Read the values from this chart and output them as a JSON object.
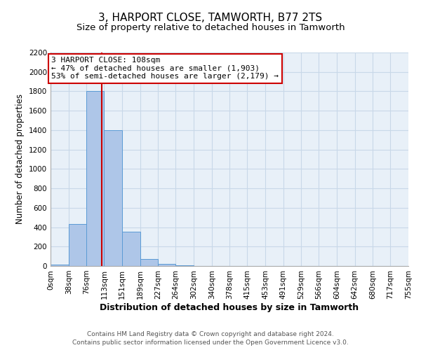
{
  "title": "3, HARPORT CLOSE, TAMWORTH, B77 2TS",
  "subtitle": "Size of property relative to detached houses in Tamworth",
  "xlabel": "Distribution of detached houses by size in Tamworth",
  "ylabel": "Number of detached properties",
  "bin_edges": [
    0,
    38,
    76,
    113,
    151,
    189,
    227,
    264,
    302,
    340,
    378,
    415,
    453,
    491,
    529,
    566,
    604,
    642,
    680,
    717,
    755
  ],
  "bin_counts": [
    15,
    430,
    1800,
    1400,
    350,
    75,
    25,
    5,
    0,
    0,
    0,
    0,
    0,
    0,
    0,
    0,
    0,
    0,
    0,
    0
  ],
  "bar_color": "#aec6e8",
  "bar_edge_color": "#5b9bd5",
  "property_size": 108,
  "vline_color": "#cc0000",
  "annotation_line1": "3 HARPORT CLOSE: 108sqm",
  "annotation_line2": "← 47% of detached houses are smaller (1,903)",
  "annotation_line3": "53% of semi-detached houses are larger (2,179) →",
  "annotation_box_edge": "#cc0000",
  "ylim": [
    0,
    2200
  ],
  "yticks": [
    0,
    200,
    400,
    600,
    800,
    1000,
    1200,
    1400,
    1600,
    1800,
    2000,
    2200
  ],
  "tick_labels": [
    "0sqm",
    "38sqm",
    "76sqm",
    "113sqm",
    "151sqm",
    "189sqm",
    "227sqm",
    "264sqm",
    "302sqm",
    "340sqm",
    "378sqm",
    "415sqm",
    "453sqm",
    "491sqm",
    "529sqm",
    "566sqm",
    "604sqm",
    "642sqm",
    "680sqm",
    "717sqm",
    "755sqm"
  ],
  "footer_line1": "Contains HM Land Registry data © Crown copyright and database right 2024.",
  "footer_line2": "Contains public sector information licensed under the Open Government Licence v3.0.",
  "bg_color": "#ffffff",
  "plot_bg_color": "#e8f0f8",
  "grid_color": "#c8d8e8",
  "title_fontsize": 11,
  "subtitle_fontsize": 9.5,
  "xlabel_fontsize": 9,
  "ylabel_fontsize": 8.5,
  "tick_fontsize": 7.5,
  "annotation_fontsize": 8,
  "footer_fontsize": 6.5
}
